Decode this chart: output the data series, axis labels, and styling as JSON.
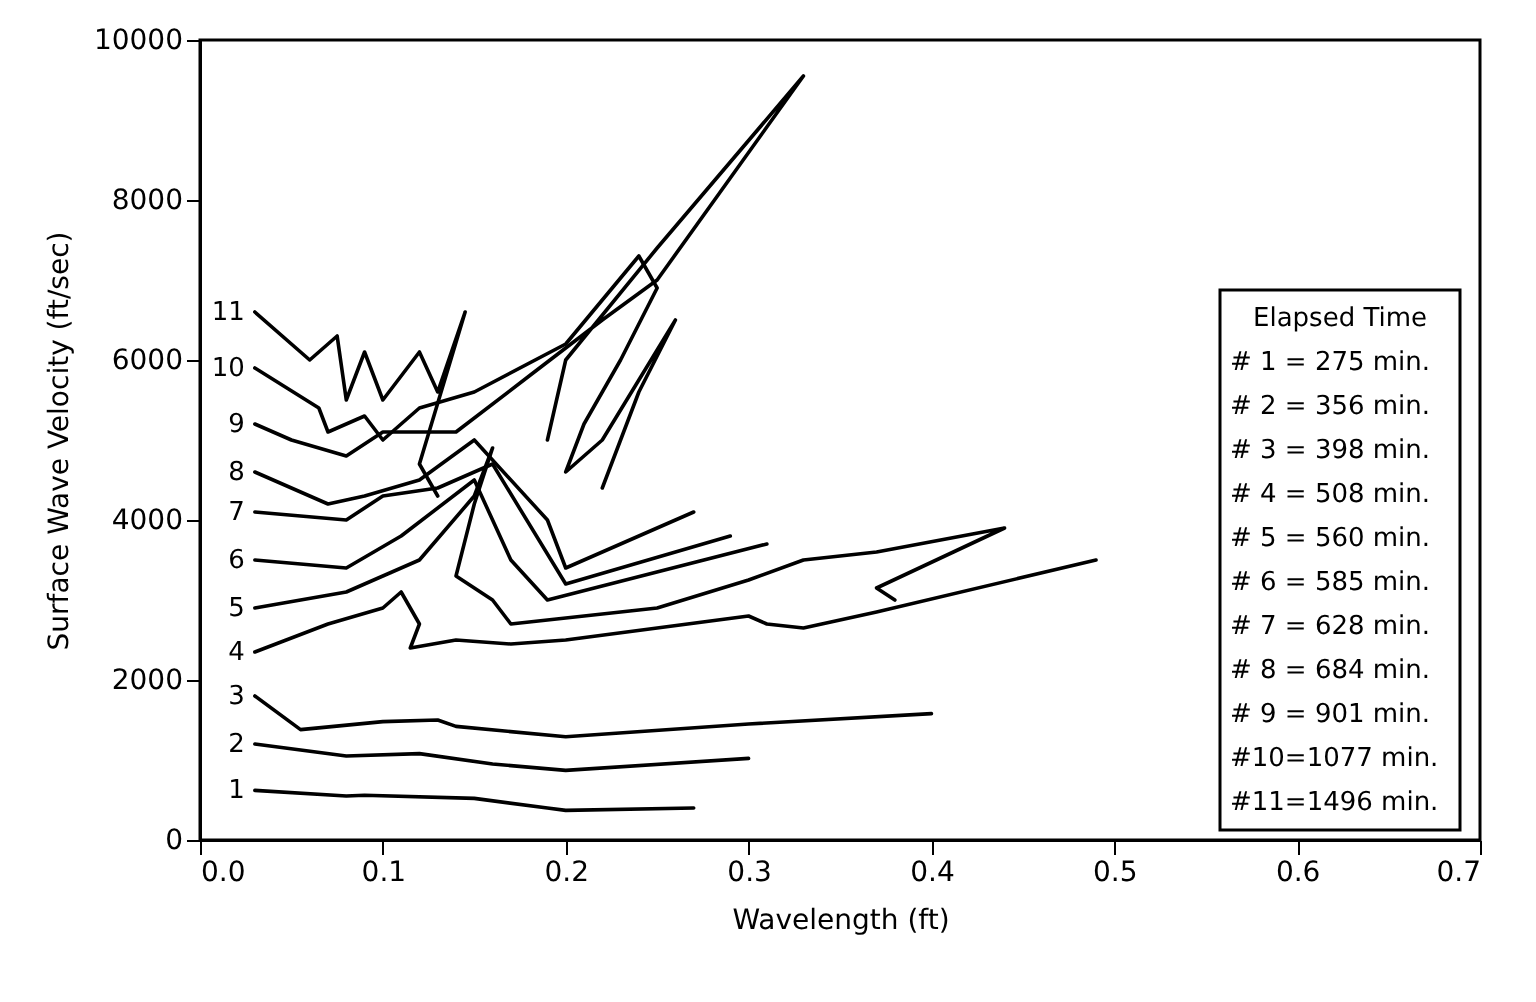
{
  "chart_data": {
    "type": "line",
    "xlabel": "Wavelength (ft)",
    "ylabel": "Surface Wave Velocity (ft/sec)",
    "xlim": [
      0,
      0.7
    ],
    "xticks": [
      {
        "value": 0,
        "label": "0.0"
      },
      {
        "value": 0.1,
        "label": "0.1"
      },
      {
        "value": 0.2,
        "label": "0.2"
      },
      {
        "value": 0.3,
        "label": "0.3"
      },
      {
        "value": 0.4,
        "label": "0.4"
      },
      {
        "value": 0.5,
        "label": "0.5"
      },
      {
        "value": 0.6,
        "label": "0.6"
      },
      {
        "value": 0.7,
        "label": "0.7"
      }
    ],
    "ylim": [
      0,
      10000
    ],
    "yticks": [
      0,
      2000,
      4000,
      6000,
      8000,
      10000
    ],
    "annotations": [
      "Elapsed Time",
      "# 1 = 275 min.",
      "# 2 = 356 min.",
      "# 3 = 398 min.",
      "# 4 = 508 min.",
      "# 5 = 560 min.",
      "# 6 = 585 min.",
      "# 7 = 628 min.",
      "# 8 = 684 min.",
      "# 9 = 901 min.",
      "#10=1077 min.",
      "#11=1496 min."
    ],
    "series": [
      {
        "name": "1",
        "color": "#000000",
        "x": [
          0.03,
          0.08,
          0.09,
          0.15,
          0.19,
          0.2,
          0.27
        ],
        "values": [
          620,
          550,
          560,
          520,
          400,
          370,
          400
        ]
      },
      {
        "name": "2",
        "color": "#000000",
        "x": [
          0.03,
          0.08,
          0.12,
          0.16,
          0.2,
          0.3
        ],
        "values": [
          1200,
          1050,
          1080,
          950,
          870,
          1020
        ]
      },
      {
        "name": "3",
        "color": "#000000",
        "x": [
          0.03,
          0.055,
          0.1,
          0.13,
          0.14,
          0.2,
          0.3,
          0.4
        ],
        "values": [
          1800,
          1380,
          1480,
          1500,
          1420,
          1290,
          1450,
          1580
        ]
      },
      {
        "name": "4",
        "color": "#000000",
        "x": [
          0.03,
          0.07,
          0.1,
          0.11,
          0.12,
          0.115,
          0.14,
          0.17,
          0.2,
          0.3,
          0.31,
          0.33,
          0.37,
          0.49
        ],
        "values": [
          2350,
          2700,
          2900,
          3100,
          2700,
          2400,
          2500,
          2450,
          2500,
          2800,
          2700,
          2650,
          2850,
          3500
        ]
      },
      {
        "name": "5",
        "color": "#000000",
        "x": [
          0.03,
          0.08,
          0.12,
          0.15,
          0.16,
          0.15,
          0.14,
          0.16,
          0.17,
          0.25,
          0.3,
          0.33,
          0.37,
          0.44,
          0.37,
          0.38
        ],
        "values": [
          2900,
          3100,
          3500,
          4300,
          4900,
          4200,
          3300,
          3000,
          2700,
          2900,
          3250,
          3500,
          3600,
          3900,
          3150,
          3000
        ]
      },
      {
        "name": "6",
        "color": "#000000",
        "x": [
          0.03,
          0.08,
          0.11,
          0.15,
          0.17,
          0.19,
          0.31
        ],
        "values": [
          3500,
          3400,
          3800,
          4500,
          3500,
          3000,
          3700
        ]
      },
      {
        "name": "7",
        "color": "#000000",
        "x": [
          0.03,
          0.08,
          0.1,
          0.13,
          0.16,
          0.2,
          0.29
        ],
        "values": [
          4100,
          4000,
          4300,
          4400,
          4700,
          3200,
          3800
        ]
      },
      {
        "name": "8",
        "color": "#000000",
        "x": [
          0.03,
          0.07,
          0.09,
          0.12,
          0.15,
          0.19,
          0.2,
          0.27
        ],
        "values": [
          4600,
          4200,
          4300,
          4500,
          5000,
          4000,
          3400,
          4100
        ]
      },
      {
        "name": "9",
        "color": "#000000",
        "x": [
          0.03,
          0.05,
          0.08,
          0.1,
          0.14,
          0.18,
          0.22,
          0.25,
          0.33,
          0.25,
          0.2,
          0.19
        ],
        "values": [
          5200,
          5000,
          4800,
          5100,
          5100,
          5800,
          6500,
          7000,
          9550,
          7400,
          6000,
          5000
        ]
      },
      {
        "name": "10",
        "color": "#000000",
        "x": [
          0.03,
          0.065,
          0.07,
          0.09,
          0.1,
          0.12,
          0.15,
          0.2,
          0.24,
          0.25,
          0.23,
          0.21,
          0.2,
          0.22,
          0.26,
          0.24,
          0.22
        ],
        "values": [
          5900,
          5400,
          5100,
          5300,
          5000,
          5400,
          5600,
          6200,
          7300,
          6900,
          6000,
          5200,
          4600,
          5000,
          6500,
          5600,
          4400
        ]
      },
      {
        "name": "11",
        "color": "#000000",
        "x": [
          0.03,
          0.06,
          0.075,
          0.08,
          0.09,
          0.1,
          0.12,
          0.13,
          0.145,
          0.12,
          0.13
        ],
        "values": [
          6600,
          6000,
          6300,
          5500,
          6100,
          5500,
          6100,
          5600,
          6600,
          4700,
          4300
        ]
      }
    ],
    "line_style": "solid"
  }
}
